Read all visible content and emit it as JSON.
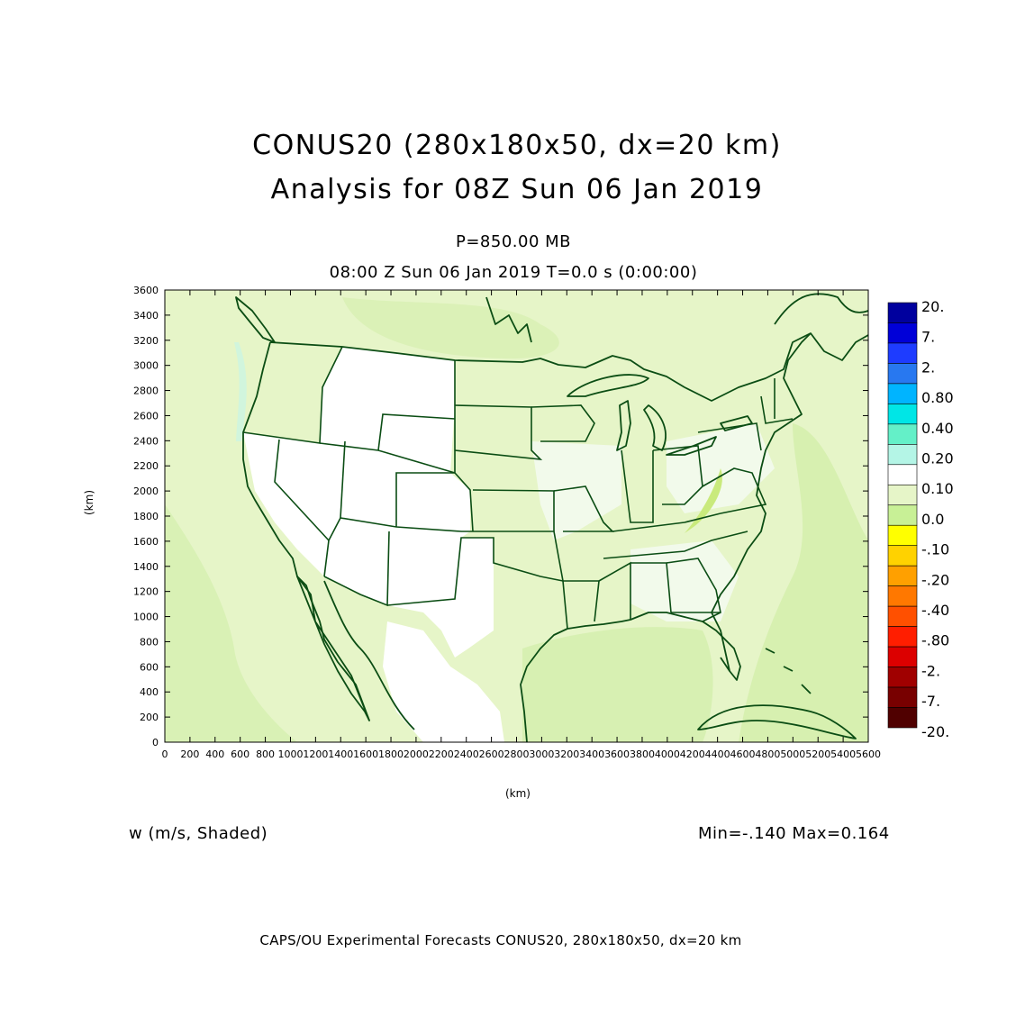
{
  "title_line1": "CONUS20 (280x180x50, dx=20 km)",
  "title_line2": "Analysis for 08Z Sun 06 Jan 2019",
  "level": "P=850.00 MB",
  "valid_time": "08:00 Z Sun 06 Jan 2019   T=0.0 s (0:00:00)",
  "x_axis_label": "(km)",
  "y_axis_label": "(km)",
  "field_label": "w (m/s, Shaded)",
  "min_max": "Min=-.140 Max=0.164",
  "footer": "CAPS/OU Experimental Forecasts  CONUS20, 280x180x50, dx=20 km",
  "x_ticks": [
    "0",
    "200",
    "400",
    "600",
    "800",
    "1000",
    "1200",
    "1400",
    "1600",
    "1800",
    "2000",
    "2200",
    "2400",
    "2600",
    "2800",
    "3000",
    "3200",
    "3400",
    "3600",
    "3800",
    "4000",
    "4200",
    "4400",
    "4600",
    "4800",
    "5000",
    "5200",
    "5400",
    "5600"
  ],
  "y_ticks": [
    "0",
    "200",
    "400",
    "600",
    "800",
    "1000",
    "1200",
    "1400",
    "1600",
    "1800",
    "2000",
    "2200",
    "2400",
    "2600",
    "2800",
    "3000",
    "3200",
    "3400",
    "3600"
  ],
  "colorbar": {
    "labels": [
      "20.",
      "7.",
      "2.",
      "0.80",
      "0.40",
      "0.20",
      "0.10",
      "0.0",
      "-.10",
      "-.20",
      "-.40",
      "-.80",
      "-2.",
      "-7.",
      "-20."
    ],
    "colors": [
      "#00009e",
      "#0000d8",
      "#1e3cff",
      "#2878f0",
      "#00b4ff",
      "#00e6e6",
      "#64f0c8",
      "#b4f5e6",
      "#ffffff",
      "#e6f5c8",
      "#c8f096",
      "#ffff00",
      "#ffd200",
      "#ffa000",
      "#ff7800",
      "#ff5000",
      "#ff1e00",
      "#dc0000",
      "#a00000",
      "#780000",
      "#500000"
    ]
  },
  "chart_data": {
    "type": "heatmap",
    "field": "w",
    "units": "m/s",
    "x_range_km": [
      0,
      5600
    ],
    "y_range_km": [
      0,
      3600
    ],
    "min": -0.14,
    "max": 0.164
  }
}
